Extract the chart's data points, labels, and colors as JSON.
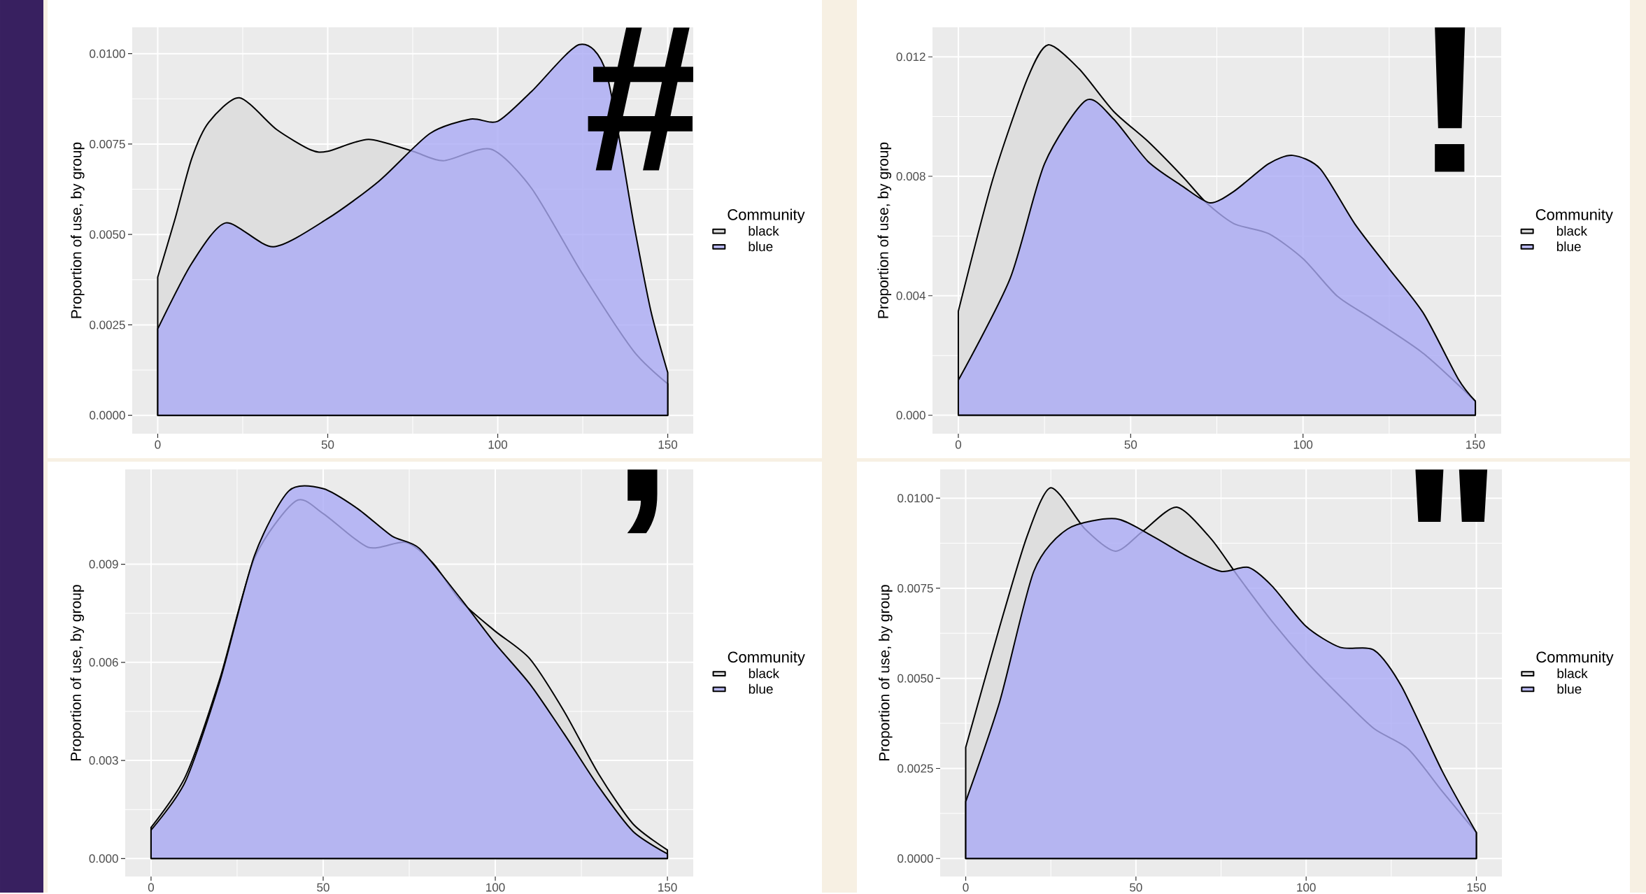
{
  "chart_data": [
    {
      "type": "area",
      "ylabel": "Proportion of use, by group",
      "legend_title": "Community",
      "legend": "right",
      "grid": true,
      "xlim": [
        -7.5,
        157.5
      ],
      "ylim": [
        -0.00051,
        0.01073
      ],
      "xticks": [
        0,
        50,
        100,
        150
      ],
      "yticks": [
        {
          "value": 0,
          "label": "0.0000"
        },
        {
          "value": 0.0025,
          "label": "0.0025"
        },
        {
          "value": 0.005,
          "label": "0.0050"
        },
        {
          "value": 0.0075,
          "label": "0.0075"
        },
        {
          "value": 0.01,
          "label": "0.0100"
        }
      ],
      "annotations": [
        "#"
      ],
      "series": [
        {
          "name": "black",
          "color": "#dedede",
          "x": [
            0,
            5,
            10,
            15,
            24,
            35,
            45,
            50,
            62,
            75,
            84,
            98,
            110,
            125,
            140,
            150
          ],
          "values": [
            0.00382,
            0.0054,
            0.0071,
            0.0081,
            0.00878,
            0.0079,
            0.00734,
            0.0073,
            0.00763,
            0.0073,
            0.00704,
            0.00736,
            0.00627,
            0.0039,
            0.00177,
            0.00087
          ]
        },
        {
          "name": "blue",
          "color": "#aaaaf5",
          "x": [
            0,
            10,
            20,
            34,
            50,
            65,
            80,
            92,
            100,
            110,
            124,
            132,
            140,
            145,
            150
          ],
          "values": [
            0.00239,
            0.0042,
            0.00532,
            0.00466,
            0.00544,
            0.00647,
            0.00779,
            0.00819,
            0.00813,
            0.00896,
            0.01025,
            0.00945,
            0.0053,
            0.0029,
            0.00118
          ]
        }
      ]
    },
    {
      "type": "area",
      "ylabel": "Proportion of use, by group",
      "legend_title": "Community",
      "legend": "right",
      "grid": true,
      "xlim": [
        -7.5,
        157.5
      ],
      "ylim": [
        -0.00062,
        0.01299
      ],
      "xticks": [
        0,
        50,
        100,
        150
      ],
      "yticks": [
        {
          "value": 0,
          "label": "0.000"
        },
        {
          "value": 0.004,
          "label": "0.004"
        },
        {
          "value": 0.008,
          "label": "0.008"
        },
        {
          "value": 0.012,
          "label": "0.012"
        }
      ],
      "annotations": [
        "!"
      ],
      "series": [
        {
          "name": "black",
          "color": "#dedede",
          "x": [
            0,
            10,
            20,
            26,
            35,
            45,
            55,
            65,
            72,
            80,
            90,
            100,
            110,
            120,
            135,
            150
          ],
          "values": [
            0.00348,
            0.0079,
            0.01126,
            0.0124,
            0.0116,
            0.01018,
            0.00917,
            0.008,
            0.00711,
            0.00641,
            0.00608,
            0.00524,
            0.00398,
            0.00323,
            0.00206,
            0.00047
          ]
        },
        {
          "name": "blue",
          "color": "#aaaaf5",
          "x": [
            0,
            15,
            25,
            37,
            45,
            55,
            65,
            73,
            80,
            90,
            97,
            105,
            115,
            125,
            135,
            145,
            150
          ],
          "values": [
            0.00117,
            0.00457,
            0.00842,
            0.01054,
            0.00992,
            0.0085,
            0.00767,
            0.00711,
            0.0075,
            0.00842,
            0.0087,
            0.00825,
            0.00641,
            0.0049,
            0.0034,
            0.00122,
            0.00047
          ]
        }
      ]
    },
    {
      "type": "area",
      "ylabel": "Proportion of use, by group",
      "legend_title": "Community",
      "legend": "right",
      "grid": true,
      "xlim": [
        -7.5,
        157.5
      ],
      "ylim": [
        -0.00055,
        0.0119
      ],
      "xticks": [
        0,
        50,
        100,
        150
      ],
      "yticks": [
        {
          "value": 0,
          "label": "0.000"
        },
        {
          "value": 0.003,
          "label": "0.003"
        },
        {
          "value": 0.006,
          "label": "0.006"
        },
        {
          "value": 0.009,
          "label": "0.009"
        }
      ],
      "annotations": [
        ","
      ],
      "series": [
        {
          "name": "black",
          "color": "#dedede",
          "x": [
            0,
            10,
            20,
            30,
            42,
            50,
            63,
            74,
            82,
            90,
            100,
            110,
            120,
            130,
            140,
            150
          ],
          "values": [
            0.00095,
            0.00251,
            0.0055,
            0.00917,
            0.01093,
            0.01055,
            0.00952,
            0.00967,
            0.00902,
            0.00787,
            0.00695,
            0.00611,
            0.0045,
            0.00259,
            0.00106,
            0.00026
          ]
        },
        {
          "name": "blue",
          "color": "#aaaaf5",
          "x": [
            0,
            10,
            20,
            30,
            40,
            50,
            60,
            70,
            78,
            90,
            100,
            110,
            120,
            130,
            140,
            150
          ],
          "values": [
            0.00087,
            0.00236,
            0.00542,
            0.00925,
            0.01124,
            0.01131,
            0.0107,
            0.00986,
            0.00948,
            0.00794,
            0.00657,
            0.00534,
            0.00381,
            0.0022,
            0.00083,
            0.00014
          ]
        }
      ]
    },
    {
      "type": "area",
      "ylabel": "Proportion of use, by group",
      "legend_title": "Community",
      "legend": "right",
      "grid": true,
      "xlim": [
        -7.5,
        157.5
      ],
      "ylim": [
        -0.0005,
        0.0108
      ],
      "xticks": [
        0,
        50,
        100,
        150
      ],
      "yticks": [
        {
          "value": 0,
          "label": "0.0000"
        },
        {
          "value": 0.0025,
          "label": "0.0025"
        },
        {
          "value": 0.005,
          "label": "0.0050"
        },
        {
          "value": 0.0075,
          "label": "0.0075"
        },
        {
          "value": 0.01,
          "label": "0.0100"
        }
      ],
      "annotations": [
        "\""
      ],
      "series": [
        {
          "name": "black",
          "color": "#dedede",
          "x": [
            0,
            10,
            18,
            25,
            35,
            44,
            52,
            62,
            72,
            80,
            90,
            100,
            110,
            120,
            130,
            140,
            150
          ],
          "values": [
            0.00308,
            0.00644,
            0.00894,
            0.01029,
            0.00915,
            0.00853,
            0.00908,
            0.00975,
            0.00888,
            0.00783,
            0.00658,
            0.00547,
            0.0045,
            0.0036,
            0.00304,
            0.00186,
            0.00072
          ]
        },
        {
          "name": "blue",
          "color": "#aaaaf5",
          "x": [
            0,
            10,
            20,
            30,
            44,
            55,
            65,
            75,
            83,
            90,
            100,
            110,
            120,
            128,
            140,
            150
          ],
          "values": [
            0.00158,
            0.00436,
            0.00797,
            0.00915,
            0.00943,
            0.00894,
            0.00839,
            0.00797,
            0.00808,
            0.00756,
            0.00644,
            0.00586,
            0.00578,
            0.00478,
            0.00242,
            0.00072
          ]
        }
      ]
    }
  ]
}
